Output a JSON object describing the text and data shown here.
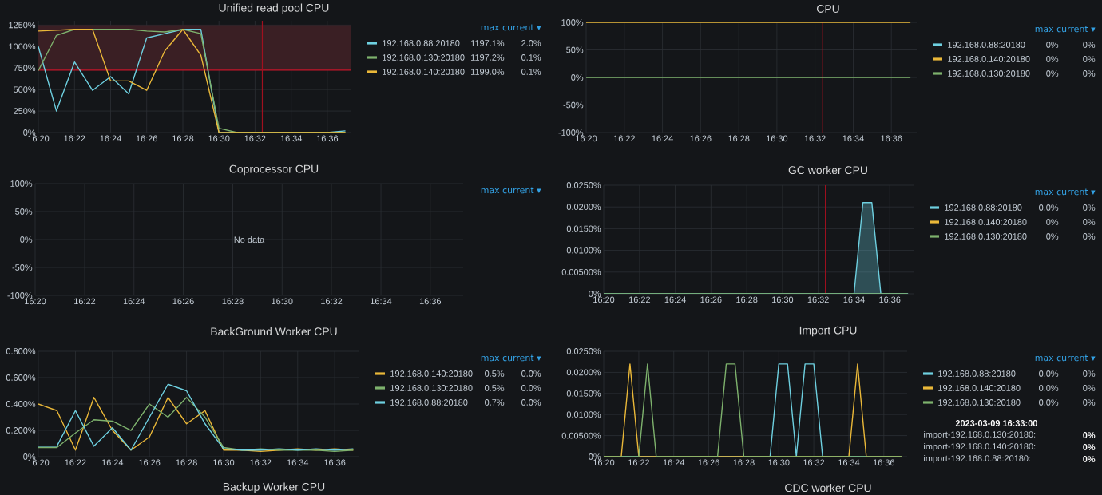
{
  "chart_data": [
    {
      "type": "line",
      "title": "Unified read pool CPU",
      "legend": "right",
      "legend_title": "max current ▾",
      "grid": true,
      "x": [
        16.3333,
        16.35,
        16.3667,
        16.3833,
        16.4,
        16.4167,
        16.4333,
        16.45,
        16.4667,
        16.4833,
        16.5,
        16.5167,
        16.5333,
        16.55,
        16.5667,
        16.5833,
        16.6,
        16.6167
      ],
      "xlim": [
        16.3333,
        16.6222
      ],
      "xticks": [
        {
          "value": 16.3333,
          "label": "16:20"
        },
        {
          "value": 16.3667,
          "label": "16:22"
        },
        {
          "value": 16.4,
          "label": "16:24"
        },
        {
          "value": 16.4333,
          "label": "16:26"
        },
        {
          "value": 16.4667,
          "label": "16:28"
        },
        {
          "value": 16.5,
          "label": "16:30"
        },
        {
          "value": 16.5333,
          "label": "16:32"
        },
        {
          "value": 16.5667,
          "label": "16:34"
        },
        {
          "value": 16.6,
          "label": "16:36"
        }
      ],
      "ylim": [
        0,
        1300
      ],
      "yticks": [
        {
          "value": 0,
          "label": "0%"
        },
        {
          "value": 250,
          "label": "250%"
        },
        {
          "value": 500,
          "label": "500%"
        },
        {
          "value": 750,
          "label": "750%"
        },
        {
          "value": 1000,
          "label": "1000%"
        },
        {
          "value": 1250,
          "label": "1250%"
        }
      ],
      "bands": [
        {
          "axis": "y",
          "from": 725,
          "to": 1250,
          "color": "#3a1f24"
        }
      ],
      "ref_lines": [
        {
          "axis": "y",
          "value": 725,
          "color": "#c4162a"
        },
        {
          "axis": "x",
          "value": 16.54,
          "color": "#a0101f"
        }
      ],
      "series": [
        {
          "name": "192.168.0.88:20180",
          "color": "#6ed0e0",
          "values": [
            1000,
            250,
            820,
            490,
            650,
            450,
            1100,
            1150,
            1200,
            1200,
            0,
            0,
            0,
            0,
            0,
            0,
            0,
            20
          ]
        },
        {
          "name": "192.168.0.130:20180",
          "color": "#7eb26d",
          "values": [
            720,
            1130,
            1200,
            1200,
            1200,
            1200,
            1180,
            1170,
            1200,
            1150,
            50,
            0,
            0,
            0,
            0,
            0,
            0,
            0
          ]
        },
        {
          "name": "192.168.0.140:20180",
          "color": "#eab839",
          "values": [
            1180,
            1190,
            1200,
            1200,
            600,
            600,
            490,
            950,
            1200,
            900,
            0,
            0,
            0,
            0,
            0,
            0,
            0,
            0
          ]
        }
      ],
      "annotations": [
        "1197.1%",
        "2.0%",
        "1197.2%",
        "0.1%",
        "1199.0%",
        "0.1%"
      ]
    },
    {
      "type": "line",
      "title": "CPU",
      "legend": "right",
      "legend_title": "max current ▾",
      "grid": true,
      "x": [
        16.3333,
        16.35,
        16.3667,
        16.3833,
        16.4,
        16.4167,
        16.4333,
        16.45,
        16.4667,
        16.4833,
        16.5,
        16.5167,
        16.5333,
        16.55,
        16.5667,
        16.5833,
        16.6,
        16.6167
      ],
      "xlim": [
        16.3333,
        16.6222
      ],
      "xticks": [
        {
          "value": 16.3333,
          "label": "16:20"
        },
        {
          "value": 16.3667,
          "label": "16:22"
        },
        {
          "value": 16.4,
          "label": "16:24"
        },
        {
          "value": 16.4333,
          "label": "16:26"
        },
        {
          "value": 16.4667,
          "label": "16:28"
        },
        {
          "value": 16.5,
          "label": "16:30"
        },
        {
          "value": 16.5333,
          "label": "16:32"
        },
        {
          "value": 16.5667,
          "label": "16:34"
        },
        {
          "value": 16.6,
          "label": "16:36"
        }
      ],
      "ylim": [
        -100,
        100
      ],
      "yticks": [
        {
          "value": -100,
          "label": "-100%"
        },
        {
          "value": -50,
          "label": "-50%"
        },
        {
          "value": 0,
          "label": "0%"
        },
        {
          "value": 50,
          "label": "50%"
        },
        {
          "value": 100,
          "label": "100%"
        }
      ],
      "ref_lines": [
        {
          "axis": "x",
          "value": 16.54,
          "color": "#a0101f"
        }
      ],
      "series": [
        {
          "name": "192.168.0.88:20180",
          "color": "#6ed0e0",
          "values": [
            null,
            null,
            null,
            null,
            null,
            null,
            null,
            null,
            null,
            null,
            null,
            null,
            null,
            null,
            null,
            null,
            null,
            null
          ]
        },
        {
          "name": "192.168.0.140:20180",
          "color": "#eab839",
          "values": [
            100,
            100,
            100,
            100,
            100,
            100,
            100,
            100,
            100,
            100,
            100,
            100,
            100,
            100,
            100,
            100,
            100,
            100
          ]
        },
        {
          "name": "192.168.0.130:20180",
          "color": "#7eb26d",
          "values": [
            0,
            0,
            0,
            0,
            0,
            0,
            0,
            0,
            0,
            0,
            0,
            0,
            0,
            0,
            0,
            0,
            0,
            0
          ]
        }
      ],
      "annotations": [
        "0%",
        "0%",
        "0%",
        "0%",
        "0%",
        "0%"
      ]
    },
    {
      "type": "line",
      "title": "Coprocessor CPU",
      "legend_title": "max current ▾",
      "grid": true,
      "xlim": [
        16.3333,
        16.6222
      ],
      "xticks": [
        {
          "value": 16.3333,
          "label": "16:20"
        },
        {
          "value": 16.3667,
          "label": "16:22"
        },
        {
          "value": 16.4,
          "label": "16:24"
        },
        {
          "value": 16.4333,
          "label": "16:26"
        },
        {
          "value": 16.4667,
          "label": "16:28"
        },
        {
          "value": 16.5,
          "label": "16:30"
        },
        {
          "value": 16.5333,
          "label": "16:32"
        },
        {
          "value": 16.5667,
          "label": "16:34"
        },
        {
          "value": 16.6,
          "label": "16:36"
        }
      ],
      "ylim": [
        -100,
        100
      ],
      "yticks": [
        {
          "value": -100,
          "label": "-100%"
        },
        {
          "value": -50,
          "label": "-50%"
        },
        {
          "value": 0,
          "label": "0%"
        },
        {
          "value": 50,
          "label": "50%"
        },
        {
          "value": 100,
          "label": "100%"
        }
      ],
      "annotations": [
        "No data"
      ]
    },
    {
      "type": "line",
      "title": "GC worker CPU",
      "legend": "right",
      "legend_title": "max current ▾",
      "grid": true,
      "xlim": [
        16.3333,
        16.6222
      ],
      "xticks": [
        {
          "value": 16.3333,
          "label": "16:20"
        },
        {
          "value": 16.3667,
          "label": "16:22"
        },
        {
          "value": 16.4,
          "label": "16:24"
        },
        {
          "value": 16.4333,
          "label": "16:26"
        },
        {
          "value": 16.4667,
          "label": "16:28"
        },
        {
          "value": 16.5,
          "label": "16:30"
        },
        {
          "value": 16.5333,
          "label": "16:32"
        },
        {
          "value": 16.5667,
          "label": "16:34"
        },
        {
          "value": 16.6,
          "label": "16:36"
        }
      ],
      "ylim": [
        0,
        0.025
      ],
      "yticks": [
        {
          "value": 0,
          "label": "0%"
        },
        {
          "value": 0.005,
          "label": "0.00500%"
        },
        {
          "value": 0.01,
          "label": "0.0100%"
        },
        {
          "value": 0.015,
          "label": "0.0150%"
        },
        {
          "value": 0.02,
          "label": "0.0200%"
        },
        {
          "value": 0.025,
          "label": "0.0250%"
        }
      ],
      "ref_lines": [
        {
          "axis": "x",
          "value": 16.54,
          "color": "#a0101f"
        }
      ],
      "series": [
        {
          "name": "192.168.0.88:20180",
          "color": "#6ed0e0",
          "type": "area",
          "x": [
            16.3333,
            16.5667,
            16.575,
            16.5833,
            16.5917,
            16.6167
          ],
          "values": [
            0,
            0,
            0.021,
            0.021,
            0,
            0
          ]
        },
        {
          "name": "192.168.0.140:20180",
          "color": "#eab839",
          "values": [
            null,
            null
          ]
        },
        {
          "name": "192.168.0.130:20180",
          "color": "#7eb26d",
          "x": [
            16.3333,
            16.6167
          ],
          "values": [
            0,
            0
          ]
        }
      ],
      "annotations": [
        "0.0%",
        "0%",
        "0%",
        "0%",
        "0%",
        "0%"
      ]
    },
    {
      "type": "line",
      "title": "BackGround Worker CPU",
      "legend": "right",
      "legend_title": "max current ▾",
      "grid": true,
      "x": [
        16.3333,
        16.35,
        16.3667,
        16.3833,
        16.4,
        16.4167,
        16.4333,
        16.45,
        16.4667,
        16.4833,
        16.5,
        16.5167,
        16.5333,
        16.55,
        16.5667,
        16.5833,
        16.6,
        16.6167
      ],
      "xlim": [
        16.3333,
        16.6222
      ],
      "xticks": [
        {
          "value": 16.3333,
          "label": "16:20"
        },
        {
          "value": 16.3667,
          "label": "16:22"
        },
        {
          "value": 16.4,
          "label": "16:24"
        },
        {
          "value": 16.4333,
          "label": "16:26"
        },
        {
          "value": 16.4667,
          "label": "16:28"
        },
        {
          "value": 16.5,
          "label": "16:30"
        },
        {
          "value": 16.5333,
          "label": "16:32"
        },
        {
          "value": 16.5667,
          "label": "16:34"
        },
        {
          "value": 16.6,
          "label": "16:36"
        }
      ],
      "ylim": [
        0,
        0.8
      ],
      "yticks": [
        {
          "value": 0,
          "label": "0%"
        },
        {
          "value": 0.2,
          "label": "0.200%"
        },
        {
          "value": 0.4,
          "label": "0.400%"
        },
        {
          "value": 0.6,
          "label": "0.600%"
        },
        {
          "value": 0.8,
          "label": "0.800%"
        }
      ],
      "series": [
        {
          "name": "192.168.0.140:20180",
          "color": "#eab839",
          "values": [
            0.4,
            0.35,
            0.05,
            0.45,
            0.2,
            0.05,
            0.15,
            0.45,
            0.25,
            0.35,
            0.05,
            0.05,
            0.04,
            0.05,
            0.06,
            0.05,
            0.06,
            0.05
          ]
        },
        {
          "name": "192.168.0.130:20180",
          "color": "#7eb26d",
          "values": [
            0.07,
            0.07,
            0.18,
            0.28,
            0.27,
            0.2,
            0.4,
            0.3,
            0.45,
            0.3,
            0.07,
            0.05,
            0.06,
            0.05,
            0.05,
            0.05,
            0.04,
            0.05
          ]
        },
        {
          "name": "192.168.0.88:20180",
          "color": "#6ed0e0",
          "values": [
            0.08,
            0.08,
            0.35,
            0.08,
            0.22,
            0.05,
            0.3,
            0.55,
            0.5,
            0.25,
            0.06,
            0.05,
            0.05,
            0.06,
            0.05,
            0.06,
            0.05,
            0.06
          ]
        }
      ],
      "annotations": [
        "0.5%",
        "0.0%",
        "0.5%",
        "0.0%",
        "0.7%",
        "0.0%"
      ]
    },
    {
      "type": "line",
      "title": "Import CPU",
      "legend": "right",
      "legend_title": "max current ▾",
      "grid": true,
      "xlim": [
        16.3333,
        16.6222
      ],
      "xticks": [
        {
          "value": 16.3333,
          "label": "16:20"
        },
        {
          "value": 16.3667,
          "label": "16:22"
        },
        {
          "value": 16.4,
          "label": "16:24"
        },
        {
          "value": 16.4333,
          "label": "16:26"
        },
        {
          "value": 16.4667,
          "label": "16:28"
        },
        {
          "value": 16.5,
          "label": "16:30"
        },
        {
          "value": 16.5333,
          "label": "16:32"
        },
        {
          "value": 16.5667,
          "label": "16:34"
        },
        {
          "value": 16.6,
          "label": "16:36"
        }
      ],
      "ylim": [
        0,
        0.025
      ],
      "yticks": [
        {
          "value": 0,
          "label": "0%"
        },
        {
          "value": 0.005,
          "label": "0.00500%"
        },
        {
          "value": 0.01,
          "label": "0.0100%"
        },
        {
          "value": 0.015,
          "label": "0.0150%"
        },
        {
          "value": 0.02,
          "label": "0.0200%"
        },
        {
          "value": 0.025,
          "label": "0.0250%"
        }
      ],
      "series": [
        {
          "name": "192.168.0.88:20180",
          "color": "#6ed0e0",
          "x": [
            16.3333,
            16.4917,
            16.5,
            16.5083,
            16.5167,
            16.525,
            16.5333,
            16.5417,
            16.6167
          ],
          "values": [
            0,
            0,
            0.022,
            0.022,
            0,
            0.022,
            0.022,
            0,
            0
          ]
        },
        {
          "name": "192.168.0.140:20180",
          "color": "#eab839",
          "x": [
            16.3333,
            16.35,
            16.3583,
            16.3667,
            16.5667,
            16.575,
            16.5833,
            16.6167
          ],
          "values": [
            0,
            0,
            0.022,
            0,
            0,
            0.022,
            0,
            0
          ]
        },
        {
          "name": "192.168.0.130:20180",
          "color": "#7eb26d",
          "x": [
            16.3333,
            16.3667,
            16.375,
            16.3833,
            16.4417,
            16.45,
            16.4583,
            16.4667,
            16.6167
          ],
          "values": [
            0,
            0,
            0.022,
            0,
            0,
            0.022,
            0.022,
            0,
            0
          ]
        }
      ],
      "annotations": [
        "0.0%",
        "0%",
        "0.0%",
        "0%",
        "0.0%",
        "0%",
        "2023-03-09 16:33:00",
        "import-192.168.0.130:20180:",
        "0%",
        "import-192.168.0.140:20180:",
        "0%",
        "import-192.168.0.88:20180:",
        "0%"
      ]
    },
    {
      "type": "other",
      "title": "Backup Worker CPU"
    },
    {
      "type": "other",
      "title": "CDC worker CPU"
    }
  ]
}
